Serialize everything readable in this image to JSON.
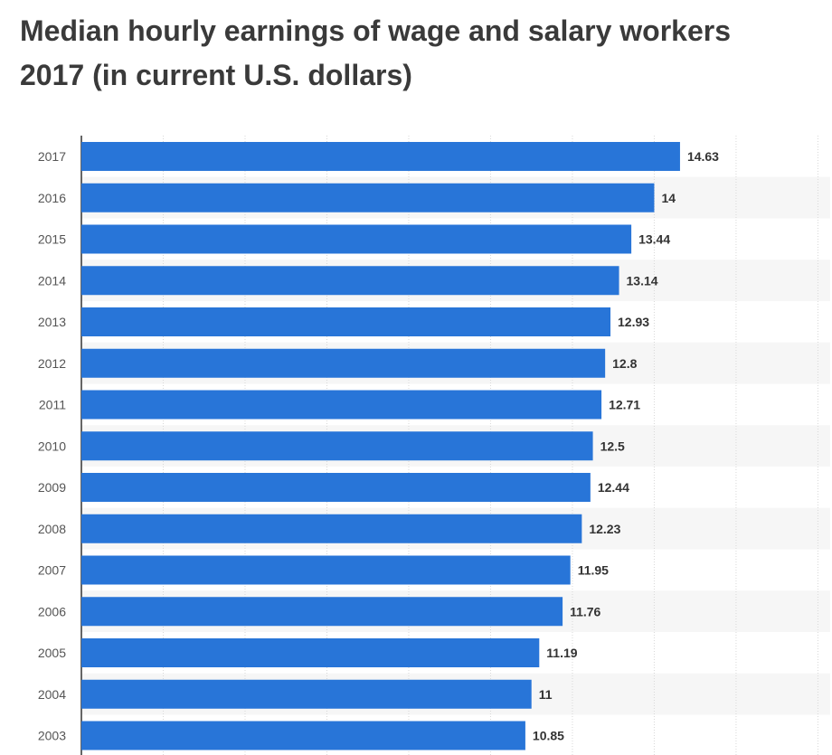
{
  "chart_data": {
    "type": "bar",
    "orientation": "horizontal",
    "title_lines": [
      "Median hourly earnings of wage and salary workers",
      "2017 (in current U.S. dollars)"
    ],
    "categories": [
      "2017",
      "2016",
      "2015",
      "2014",
      "2013",
      "2012",
      "2011",
      "2010",
      "2009",
      "2008",
      "2007",
      "2006",
      "2005",
      "2004",
      "2003"
    ],
    "values": [
      14.63,
      14,
      13.44,
      13.14,
      12.93,
      12.8,
      12.71,
      12.5,
      12.44,
      12.23,
      11.95,
      11.76,
      11.19,
      11,
      10.85
    ],
    "data_labels": [
      "14.63",
      "14",
      "13.44",
      "13.14",
      "12.93",
      "12.8",
      "12.71",
      "12.5",
      "12.44",
      "12.23",
      "11.95",
      "11.76",
      "11.19",
      "11",
      "10.85"
    ],
    "xlabel": "",
    "ylabel": "",
    "xlim": [
      0,
      18.3
    ],
    "grid": true,
    "bar_color": "#2875d8"
  }
}
